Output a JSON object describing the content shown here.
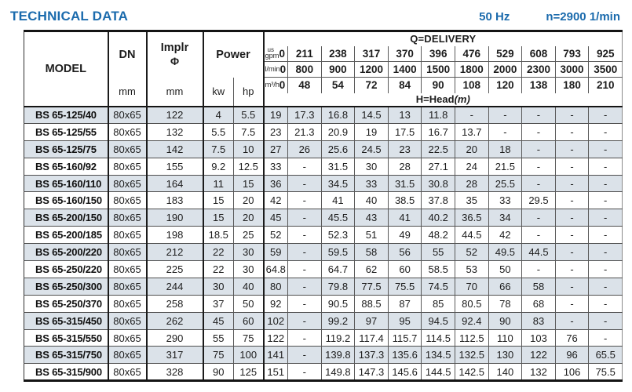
{
  "page": {
    "title": "TECHNICAL DATA",
    "frequency": "50 Hz",
    "speed": "n=2900 1/min"
  },
  "table": {
    "header": {
      "model": "MODEL",
      "dn": "DN",
      "implr_line1": "Implr",
      "implr_line2": "Φ",
      "power": "Power",
      "dn_unit": "mm",
      "implr_unit": "mm",
      "kw_unit": "kw",
      "hp_unit": "hp",
      "delivery_title": "Q=DELIVERY",
      "head_title": "H=Head",
      "head_unit": "(m)",
      "flow_rows": [
        {
          "label_top": "us",
          "label": "gpm",
          "zero": "0",
          "values": [
            "211",
            "238",
            "317",
            "370",
            "396",
            "476",
            "529",
            "608",
            "793",
            "925"
          ]
        },
        {
          "label": "l/min",
          "zero": "0",
          "values": [
            "800",
            "900",
            "1200",
            "1400",
            "1500",
            "1800",
            "2000",
            "2300",
            "3000",
            "3500"
          ]
        },
        {
          "label": "m³/h",
          "zero": "0",
          "values": [
            "48",
            "54",
            "72",
            "84",
            "90",
            "108",
            "120",
            "138",
            "180",
            "210"
          ]
        }
      ]
    },
    "rows": [
      {
        "model": "BS 65-125/40",
        "dn": "80x65",
        "implr": "122",
        "kw": "4",
        "hp": "5.5",
        "heads": [
          "19",
          "17.3",
          "16.8",
          "14.5",
          "13",
          "11.8",
          "-",
          "-",
          "-",
          "-",
          "-"
        ]
      },
      {
        "model": "BS 65-125/55",
        "dn": "80x65",
        "implr": "132",
        "kw": "5.5",
        "hp": "7.5",
        "heads": [
          "23",
          "21.3",
          "20.9",
          "19",
          "17.5",
          "16.7",
          "13.7",
          "-",
          "-",
          "-",
          "-"
        ]
      },
      {
        "model": "BS 65-125/75",
        "dn": "80x65",
        "implr": "142",
        "kw": "7.5",
        "hp": "10",
        "heads": [
          "27",
          "26",
          "25.6",
          "24.5",
          "23",
          "22.5",
          "20",
          "18",
          "-",
          "-",
          "-"
        ]
      },
      {
        "model": "BS 65-160/92",
        "dn": "80x65",
        "implr": "155",
        "kw": "9.2",
        "hp": "12.5",
        "heads": [
          "33",
          "-",
          "31.5",
          "30",
          "28",
          "27.1",
          "24",
          "21.5",
          "-",
          "-",
          "-"
        ]
      },
      {
        "model": "BS 65-160/110",
        "dn": "80x65",
        "implr": "164",
        "kw": "11",
        "hp": "15",
        "heads": [
          "36",
          "-",
          "34.5",
          "33",
          "31.5",
          "30.8",
          "28",
          "25.5",
          "-",
          "-",
          "-"
        ]
      },
      {
        "model": "BS 65-160/150",
        "dn": "80x65",
        "implr": "183",
        "kw": "15",
        "hp": "20",
        "heads": [
          "42",
          "-",
          "41",
          "40",
          "38.5",
          "37.8",
          "35",
          "33",
          "29.5",
          "-",
          "-"
        ]
      },
      {
        "model": "BS 65-200/150",
        "dn": "80x65",
        "implr": "190",
        "kw": "15",
        "hp": "20",
        "heads": [
          "45",
          "-",
          "45.5",
          "43",
          "41",
          "40.2",
          "36.5",
          "34",
          "-",
          "-",
          "-"
        ]
      },
      {
        "model": "BS 65-200/185",
        "dn": "80x65",
        "implr": "198",
        "kw": "18.5",
        "hp": "25",
        "heads": [
          "52",
          "-",
          "52.3",
          "51",
          "49",
          "48.2",
          "44.5",
          "42",
          "-",
          "-",
          "-"
        ]
      },
      {
        "model": "BS 65-200/220",
        "dn": "80x65",
        "implr": "212",
        "kw": "22",
        "hp": "30",
        "heads": [
          "59",
          "-",
          "59.5",
          "58",
          "56",
          "55",
          "52",
          "49.5",
          "44.5",
          "-",
          "-"
        ]
      },
      {
        "model": "BS 65-250/220",
        "dn": "80x65",
        "implr": "225",
        "kw": "22",
        "hp": "30",
        "heads": [
          "64.8",
          "-",
          "64.7",
          "62",
          "60",
          "58.5",
          "53",
          "50",
          "-",
          "-",
          "-"
        ]
      },
      {
        "model": "BS 65-250/300",
        "dn": "80x65",
        "implr": "244",
        "kw": "30",
        "hp": "40",
        "heads": [
          "80",
          "-",
          "79.8",
          "77.5",
          "75.5",
          "74.5",
          "70",
          "66",
          "58",
          "-",
          "-"
        ]
      },
      {
        "model": "BS 65-250/370",
        "dn": "80x65",
        "implr": "258",
        "kw": "37",
        "hp": "50",
        "heads": [
          "92",
          "-",
          "90.5",
          "88.5",
          "87",
          "85",
          "80.5",
          "78",
          "68",
          "-",
          "-"
        ]
      },
      {
        "model": "BS 65-315/450",
        "dn": "80x65",
        "implr": "262",
        "kw": "45",
        "hp": "60",
        "heads": [
          "102",
          "-",
          "99.2",
          "97",
          "95",
          "94.5",
          "92.4",
          "90",
          "83",
          "-",
          "-"
        ]
      },
      {
        "model": "BS 65-315/550",
        "dn": "80x65",
        "implr": "290",
        "kw": "55",
        "hp": "75",
        "heads": [
          "122",
          "-",
          "119.2",
          "117.4",
          "115.7",
          "114.5",
          "112.5",
          "110",
          "103",
          "76",
          "-"
        ]
      },
      {
        "model": "BS 65-315/750",
        "dn": "80x65",
        "implr": "317",
        "kw": "75",
        "hp": "100",
        "heads": [
          "141",
          "-",
          "139.8",
          "137.3",
          "135.6",
          "134.5",
          "132.5",
          "130",
          "122",
          "96",
          "65.5"
        ]
      },
      {
        "model": "BS 65-315/900",
        "dn": "80x65",
        "implr": "328",
        "kw": "90",
        "hp": "125",
        "heads": [
          "151",
          "-",
          "149.8",
          "147.3",
          "145.6",
          "144.5",
          "142.5",
          "140",
          "132",
          "106",
          "75.5"
        ]
      }
    ]
  }
}
